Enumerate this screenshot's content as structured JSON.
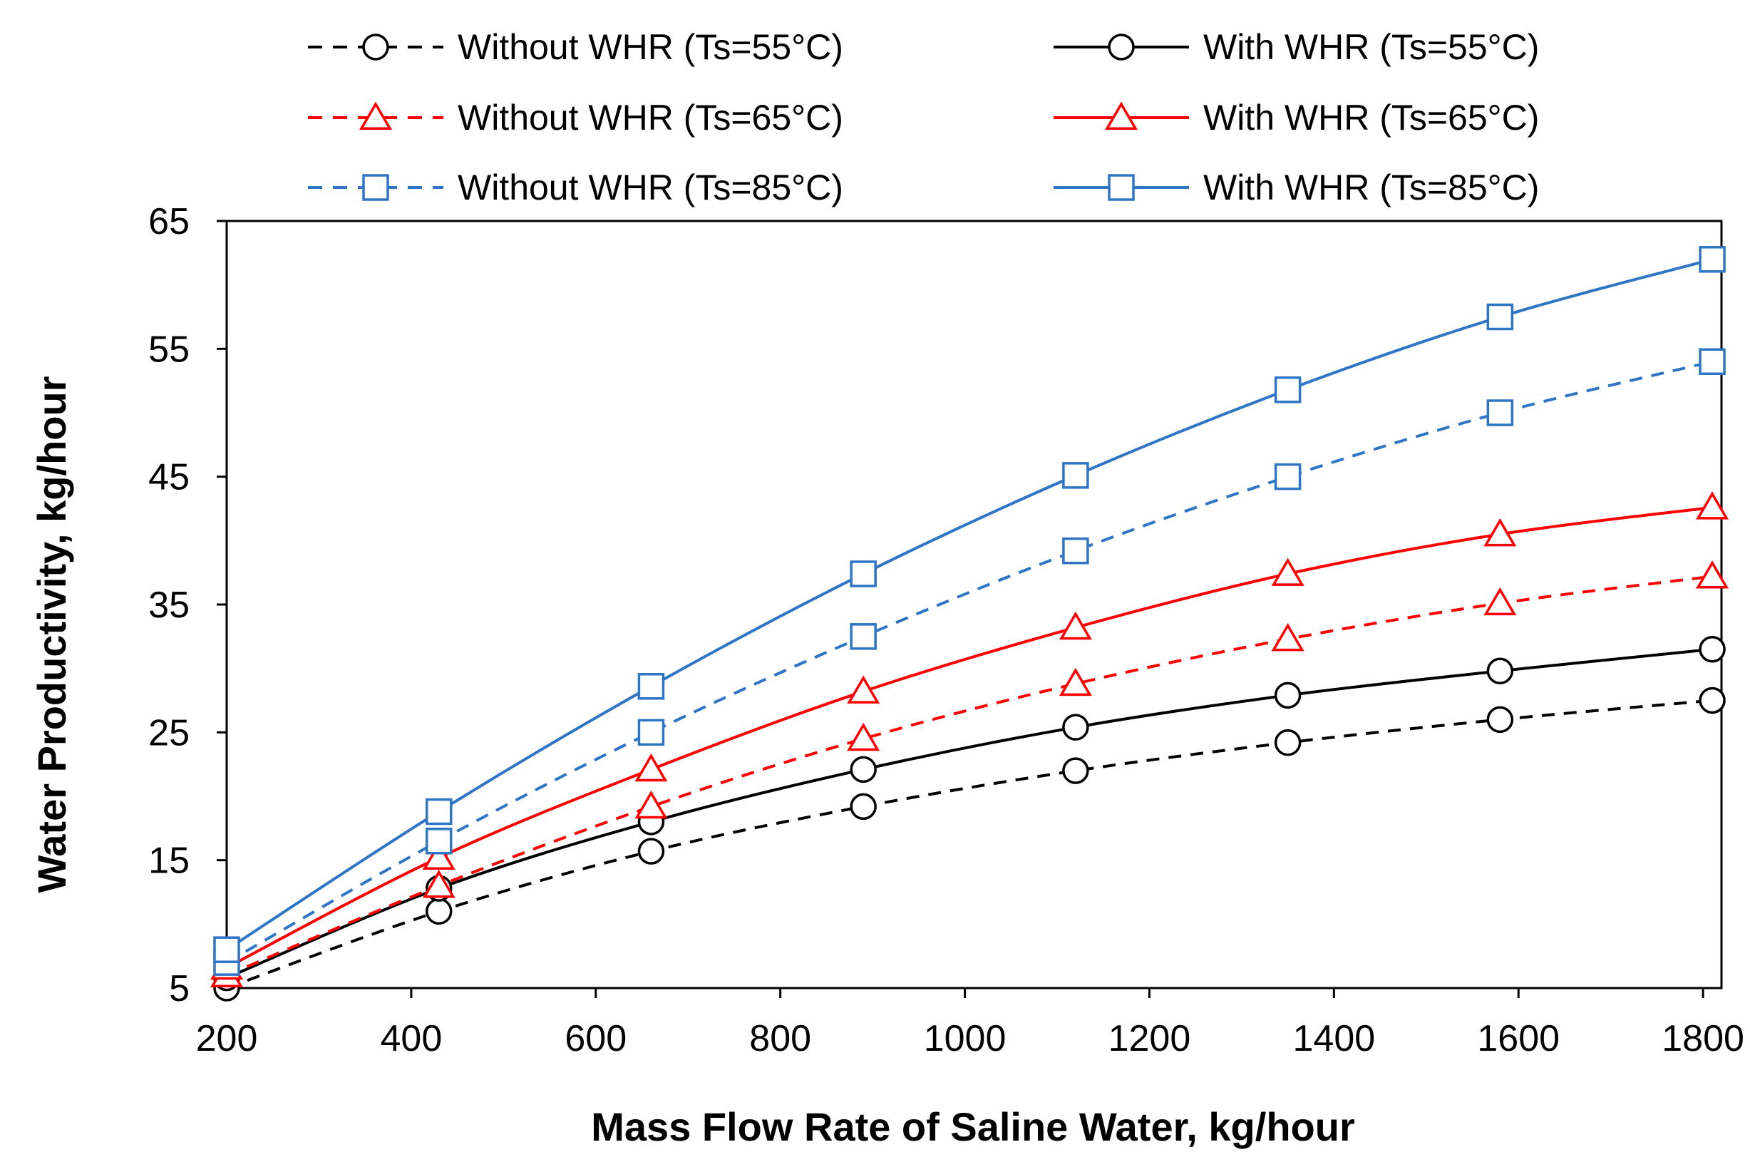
{
  "chart_data": {
    "type": "line",
    "title": "",
    "xlabel": "Mass Flow Rate of Saline Water, kg/hour",
    "ylabel": "Water Productivity, kg/hour",
    "xlim": [
      200,
      1820
    ],
    "ylim": [
      5,
      65
    ],
    "xticks": [
      200,
      400,
      600,
      800,
      1000,
      1200,
      1400,
      1600,
      1800
    ],
    "yticks": [
      5,
      15,
      25,
      35,
      45,
      55,
      65
    ],
    "x": [
      200,
      430,
      660,
      890,
      1120,
      1350,
      1580,
      1810
    ],
    "legend_position": "top",
    "series": [
      {
        "name": "Without WHR (Ts=55°C)",
        "color": "#000000",
        "dash": true,
        "marker": "circle",
        "values": [
          5.0,
          11.0,
          15.7,
          19.2,
          22.0,
          24.2,
          26.0,
          27.5
        ]
      },
      {
        "name": "With WHR (Ts=55°C)",
        "color": "#000000",
        "dash": false,
        "marker": "circle",
        "values": [
          5.8,
          12.8,
          18.0,
          22.1,
          25.4,
          27.9,
          29.8,
          31.5
        ]
      },
      {
        "name": "Without WHR (Ts=65°C)",
        "color": "#ff0000",
        "dash": true,
        "marker": "triangle",
        "values": [
          6.0,
          13.0,
          19.2,
          24.5,
          28.8,
          32.3,
          35.1,
          37.2
        ]
      },
      {
        "name": "With WHR (Ts=65°C)",
        "color": "#ff0000",
        "dash": false,
        "marker": "triangle",
        "values": [
          6.6,
          15.2,
          22.1,
          28.2,
          33.2,
          37.4,
          40.5,
          42.6
        ]
      },
      {
        "name": "Without WHR (Ts=85°C)",
        "color": "#2e75c6",
        "dash": true,
        "marker": "square",
        "values": [
          7.0,
          16.5,
          25.0,
          32.5,
          39.2,
          45.0,
          50.0,
          54.0
        ]
      },
      {
        "name": "With WHR (Ts=85°C)",
        "color": "#2e75c6",
        "dash": false,
        "marker": "square",
        "values": [
          8.0,
          18.8,
          28.6,
          37.4,
          45.1,
          51.8,
          57.5,
          62.0
        ]
      }
    ]
  }
}
